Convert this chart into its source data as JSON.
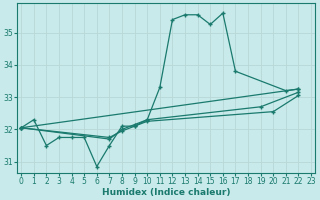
{
  "xlabel": "Humidex (Indice chaleur)",
  "bg_color": "#c8eaea",
  "grid_color": "#b8d8d8",
  "line_color": "#1a7a6e",
  "xlim": [
    -0.3,
    23.3
  ],
  "ylim": [
    30.65,
    35.9
  ],
  "yticks": [
    31,
    32,
    33,
    34,
    35
  ],
  "xticks": [
    0,
    1,
    2,
    3,
    4,
    5,
    6,
    7,
    8,
    9,
    10,
    11,
    12,
    13,
    14,
    15,
    16,
    17,
    18,
    19,
    20,
    21,
    22,
    23
  ],
  "line1_x": [
    0,
    1,
    2,
    3,
    4,
    5,
    6,
    7,
    8,
    9,
    10,
    11,
    12,
    13,
    14,
    15,
    16,
    17,
    21,
    22
  ],
  "line1_y": [
    32.05,
    32.3,
    31.5,
    31.75,
    31.75,
    31.75,
    30.85,
    31.5,
    32.1,
    32.1,
    32.3,
    33.3,
    35.4,
    35.55,
    35.55,
    35.25,
    35.6,
    33.8,
    33.2,
    33.25
  ],
  "line2_x": [
    0,
    22
  ],
  "line2_y": [
    32.05,
    33.25
  ],
  "line3_x": [
    0,
    7,
    8,
    9,
    10,
    19,
    22
  ],
  "line3_y": [
    32.05,
    31.7,
    32.0,
    32.15,
    32.3,
    32.7,
    33.15
  ],
  "line4_x": [
    0,
    7,
    8,
    9,
    10,
    20,
    22
  ],
  "line4_y": [
    32.05,
    31.75,
    31.95,
    32.1,
    32.25,
    32.55,
    33.05
  ]
}
